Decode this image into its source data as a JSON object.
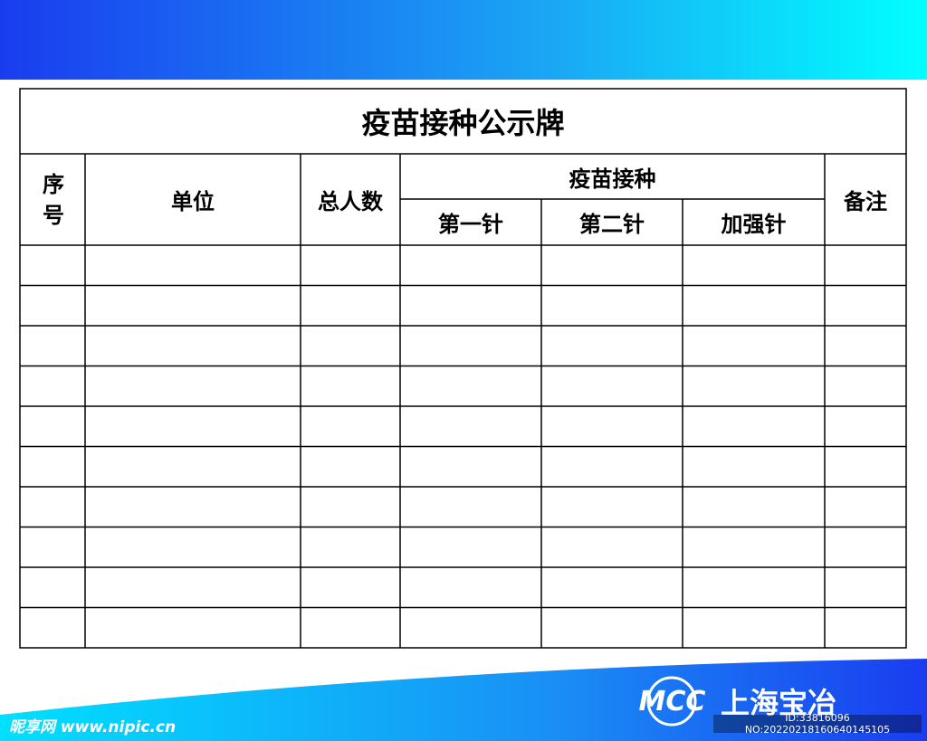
{
  "header": {
    "title": "疫苗接种公示牌"
  },
  "table": {
    "columns": {
      "index": "序号",
      "unit": "单位",
      "total": "总人数",
      "vaccination": "疫苗接种",
      "dose1": "第一针",
      "dose2": "第二针",
      "booster": "加强针",
      "remarks": "备注"
    }
  },
  "footer": {
    "logo": "MCC",
    "company": "上海宝冶",
    "watermark": "昵享网 www.nipic.cn",
    "id": "ID:33816096 NO:20220218160640145105"
  }
}
